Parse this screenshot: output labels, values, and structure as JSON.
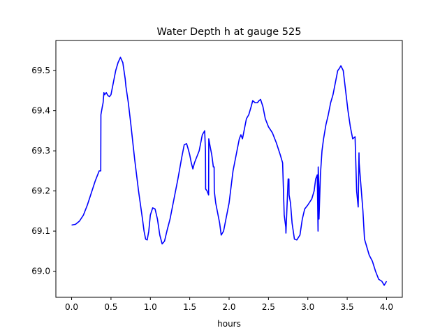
{
  "chart_data": {
    "type": "line",
    "title": "Water Depth h at gauge 525",
    "xlabel": "hours",
    "ylabel": "",
    "xlim": [
      -0.2,
      4.2
    ],
    "ylim": [
      68.935,
      69.575
    ],
    "xticks": [
      0.0,
      0.5,
      1.0,
      1.5,
      2.0,
      2.5,
      3.0,
      3.5,
      4.0
    ],
    "xtick_labels": [
      "0.0",
      "0.5",
      "1.0",
      "1.5",
      "2.0",
      "2.5",
      "3.0",
      "3.5",
      "4.0"
    ],
    "yticks": [
      69.0,
      69.1,
      69.2,
      69.3,
      69.4,
      69.5
    ],
    "ytick_labels": [
      "69.0",
      "69.1",
      "69.2",
      "69.3",
      "69.4",
      "69.5"
    ],
    "grid": false,
    "legend": "none",
    "series": [
      {
        "color": "#0000ff",
        "x": [
          0.0,
          0.05,
          0.1,
          0.15,
          0.2,
          0.25,
          0.3,
          0.35,
          0.37,
          0.372,
          0.39,
          0.4,
          0.41,
          0.42,
          0.44,
          0.46,
          0.48,
          0.5,
          0.53,
          0.56,
          0.59,
          0.62,
          0.65,
          0.68,
          0.69,
          0.72,
          0.75,
          0.8,
          0.85,
          0.9,
          0.92,
          0.94,
          0.96,
          0.98,
          1.0,
          1.03,
          1.06,
          1.09,
          1.12,
          1.15,
          1.18,
          1.21,
          1.25,
          1.3,
          1.35,
          1.4,
          1.43,
          1.46,
          1.48,
          1.5,
          1.52,
          1.54,
          1.56,
          1.58,
          1.62,
          1.66,
          1.69,
          1.7,
          1.702,
          1.72,
          1.74,
          1.742,
          1.76,
          1.78,
          1.8,
          1.81,
          1.812,
          1.83,
          1.85,
          1.88,
          1.9,
          1.93,
          1.96,
          2.0,
          2.05,
          2.1,
          2.13,
          2.15,
          2.17,
          2.2,
          2.22,
          2.25,
          2.28,
          2.3,
          2.33,
          2.36,
          2.38,
          2.4,
          2.43,
          2.46,
          2.5,
          2.55,
          2.6,
          2.65,
          2.68,
          2.7,
          2.72,
          2.722,
          2.75,
          2.76,
          2.762,
          2.78,
          2.8,
          2.83,
          2.86,
          2.9,
          2.93,
          2.96,
          3.0,
          3.05,
          3.08,
          3.1,
          3.12,
          3.13,
          3.132,
          3.14,
          3.142,
          3.16,
          3.18,
          3.2,
          3.23,
          3.26,
          3.29,
          3.32,
          3.35,
          3.38,
          3.4,
          3.42,
          3.45,
          3.48,
          3.51,
          3.54,
          3.57,
          3.6,
          3.62,
          3.64,
          3.65,
          3.652,
          3.66,
          3.68,
          3.7,
          3.72,
          3.75,
          3.78,
          3.82,
          3.86,
          3.9,
          3.94,
          3.97,
          4.0
        ],
        "y": [
          69.115,
          69.117,
          69.125,
          69.14,
          69.165,
          69.195,
          69.225,
          69.25,
          69.25,
          69.39,
          69.41,
          69.42,
          69.445,
          69.44,
          69.445,
          69.438,
          69.435,
          69.44,
          69.47,
          69.5,
          69.52,
          69.533,
          69.52,
          69.48,
          69.46,
          69.42,
          69.37,
          69.28,
          69.2,
          69.13,
          69.1,
          69.08,
          69.078,
          69.1,
          69.14,
          69.158,
          69.155,
          69.13,
          69.09,
          69.068,
          69.075,
          69.1,
          69.13,
          69.18,
          69.23,
          69.285,
          69.315,
          69.318,
          69.305,
          69.29,
          69.27,
          69.255,
          69.27,
          69.28,
          69.3,
          69.34,
          69.35,
          69.3,
          69.205,
          69.2,
          69.19,
          69.33,
          69.31,
          69.29,
          69.26,
          69.26,
          69.2,
          69.17,
          69.15,
          69.12,
          69.09,
          69.1,
          69.13,
          69.17,
          69.25,
          69.3,
          69.33,
          69.34,
          69.33,
          69.36,
          69.38,
          69.39,
          69.41,
          69.425,
          69.42,
          69.42,
          69.425,
          69.428,
          69.41,
          69.38,
          69.36,
          69.345,
          69.32,
          69.29,
          69.27,
          69.14,
          69.11,
          69.095,
          69.23,
          69.23,
          69.19,
          69.17,
          69.12,
          69.08,
          69.078,
          69.09,
          69.13,
          69.155,
          69.165,
          69.18,
          69.2,
          69.23,
          69.24,
          69.1,
          69.26,
          69.21,
          69.13,
          69.24,
          69.3,
          69.33,
          69.365,
          69.39,
          69.42,
          69.44,
          69.47,
          69.5,
          69.505,
          69.512,
          69.5,
          69.45,
          69.4,
          69.36,
          69.33,
          69.335,
          69.2,
          69.16,
          69.295,
          69.27,
          69.25,
          69.2,
          69.15,
          69.08,
          69.06,
          69.04,
          69.025,
          69.0,
          68.98,
          68.975,
          68.965,
          68.975
        ]
      }
    ]
  }
}
